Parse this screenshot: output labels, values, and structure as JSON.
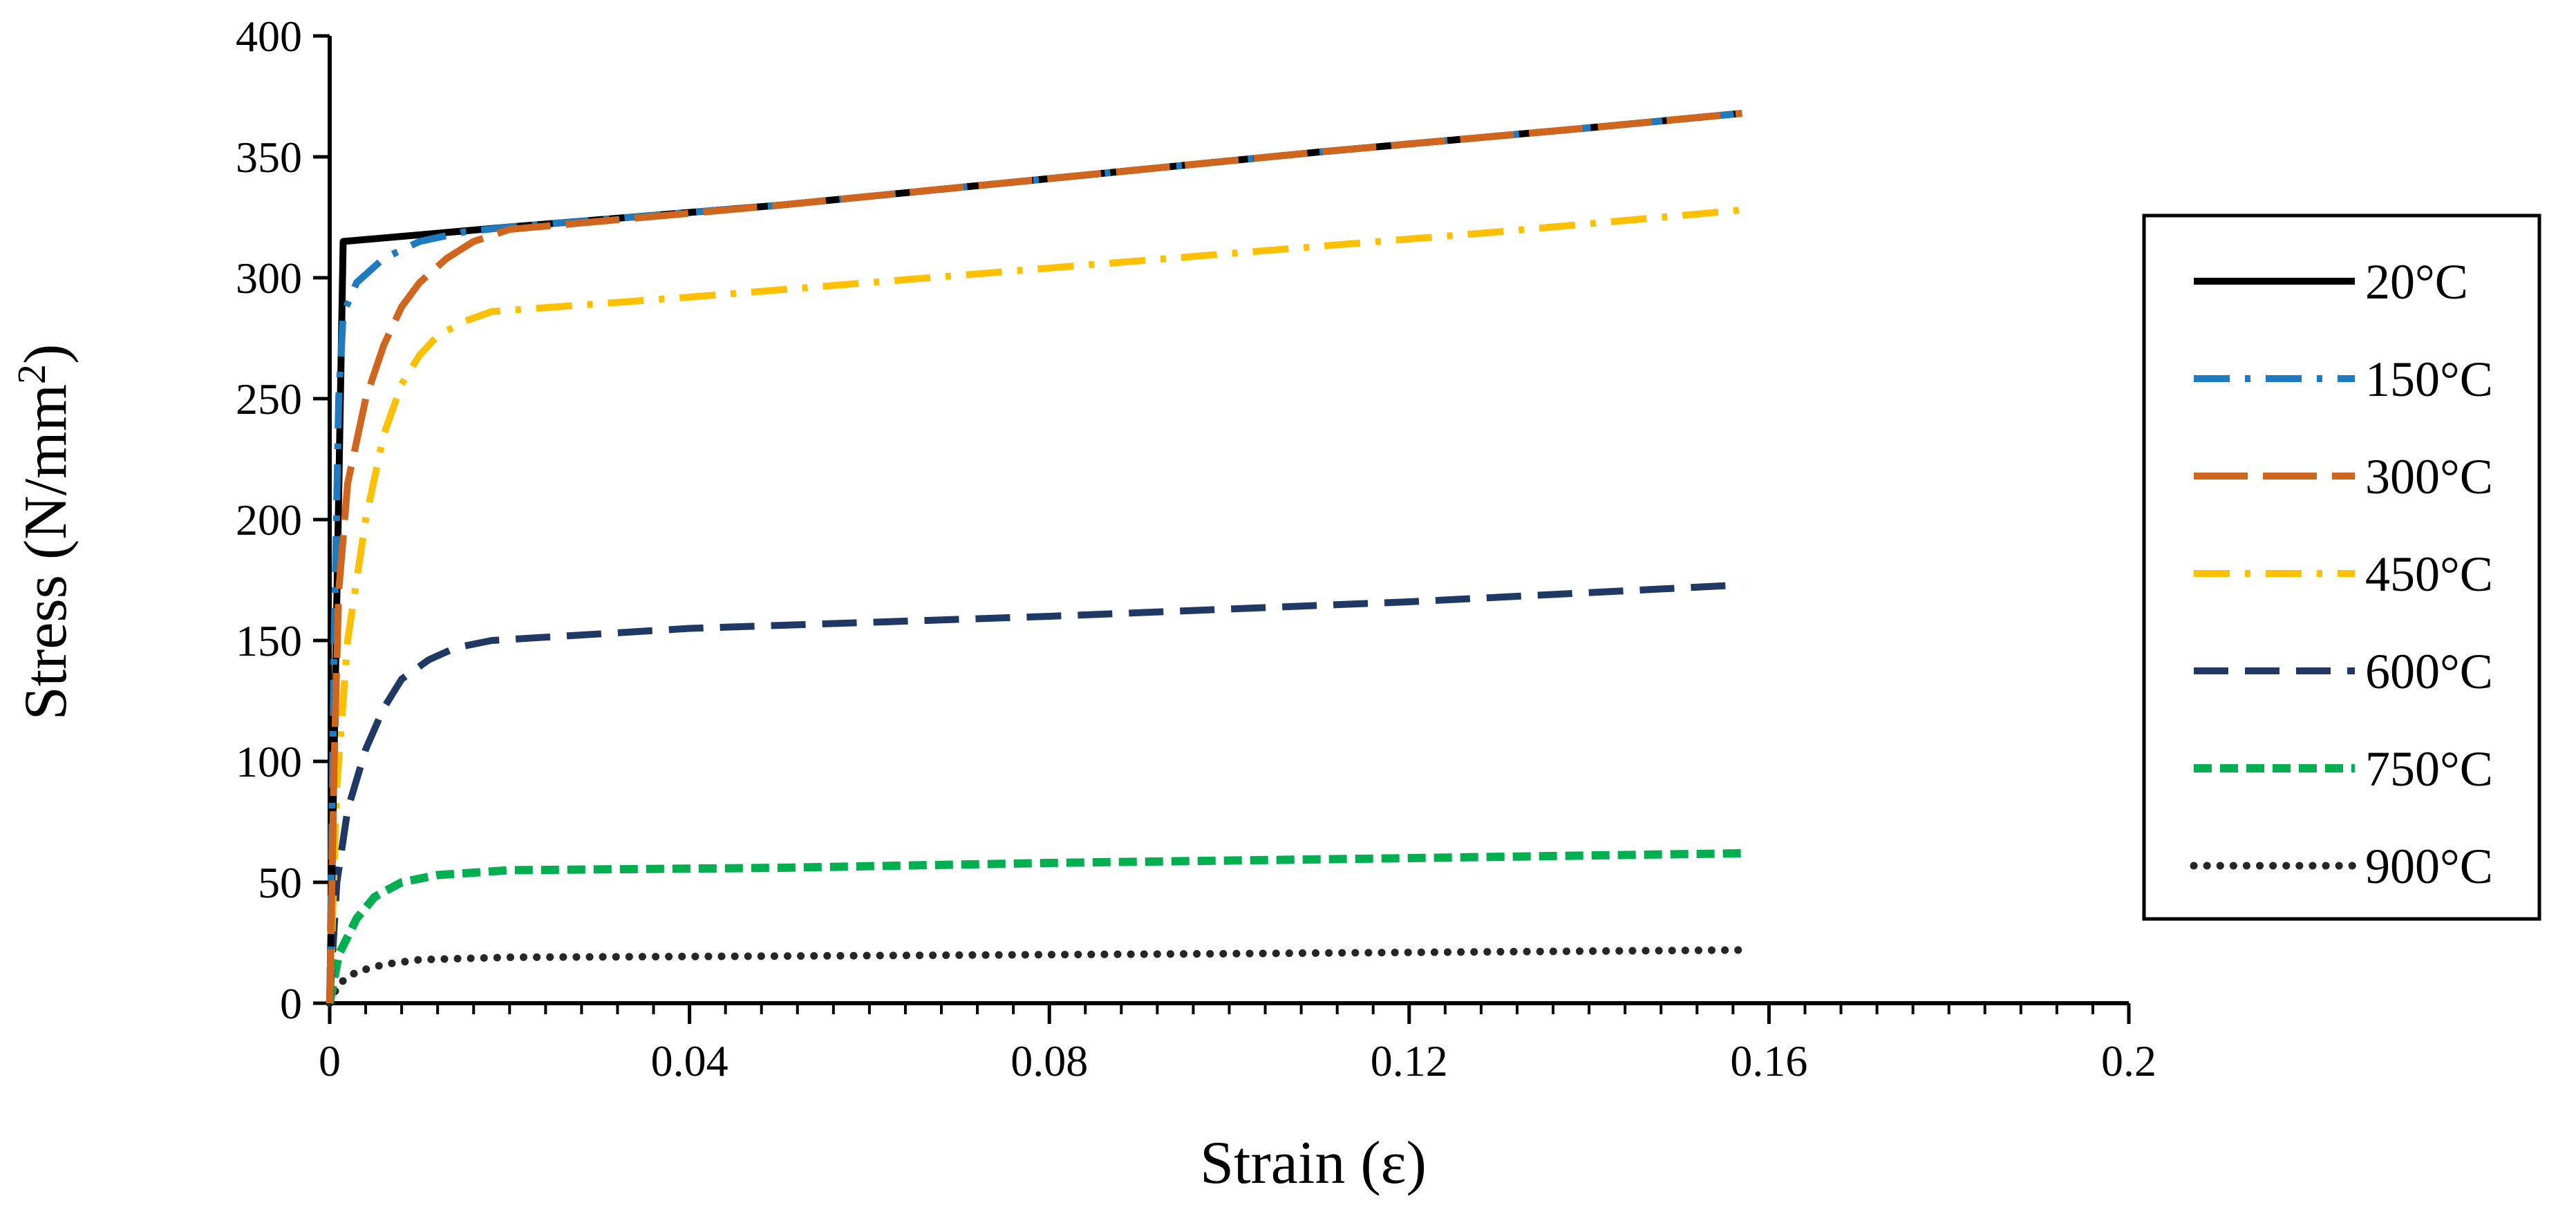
{
  "chart_data": {
    "type": "line",
    "xlabel": "Strain (ε)",
    "ylabel": "Stress (N/mm²)",
    "ylabel_main": "Stress (N/mm",
    "ylabel_sup": "2",
    "ylabel_close": ")",
    "xlim": [
      0,
      0.2
    ],
    "ylim": [
      0,
      400
    ],
    "x_ticks": [
      0,
      0.04,
      0.08,
      0.12,
      0.16,
      0.2
    ],
    "x_tick_labels": [
      "0",
      "0.04",
      "0.08",
      "0.12",
      "0.16",
      "0.2"
    ],
    "x_minor_step": 0.004,
    "y_ticks": [
      0,
      50,
      100,
      150,
      200,
      250,
      300,
      350,
      400
    ],
    "y_tick_labels": [
      "0",
      "50",
      "100",
      "150",
      "200",
      "250",
      "300",
      "350",
      "400"
    ],
    "grid": false,
    "legend_position": "right",
    "series": [
      {
        "name": "20°C",
        "color": "#000000",
        "dash": "solid",
        "points": [
          [
            0,
            0
          ],
          [
            0.0015,
            315
          ],
          [
            0.02,
            321
          ],
          [
            0.05,
            330
          ],
          [
            0.08,
            341
          ],
          [
            0.11,
            352
          ],
          [
            0.14,
            362
          ],
          [
            0.157,
            368
          ]
        ]
      },
      {
        "name": "150°C",
        "color": "#1f7bbf",
        "dash": "dashdot",
        "points": [
          [
            0,
            0
          ],
          [
            0.0005,
            150
          ],
          [
            0.001,
            250
          ],
          [
            0.0015,
            285
          ],
          [
            0.003,
            298
          ],
          [
            0.006,
            308
          ],
          [
            0.01,
            315
          ],
          [
            0.015,
            319
          ],
          [
            0.02,
            321
          ],
          [
            0.05,
            330
          ],
          [
            0.08,
            341
          ],
          [
            0.11,
            352
          ],
          [
            0.14,
            362
          ],
          [
            0.157,
            368
          ]
        ]
      },
      {
        "name": "300°C",
        "color": "#d0651e",
        "dash": "longdash",
        "points": [
          [
            0,
            0
          ],
          [
            0.0005,
            100
          ],
          [
            0.001,
            170
          ],
          [
            0.002,
            215
          ],
          [
            0.004,
            250
          ],
          [
            0.006,
            272
          ],
          [
            0.008,
            288
          ],
          [
            0.01,
            298
          ],
          [
            0.013,
            308
          ],
          [
            0.016,
            315
          ],
          [
            0.02,
            320
          ],
          [
            0.05,
            330
          ],
          [
            0.08,
            341
          ],
          [
            0.11,
            352
          ],
          [
            0.14,
            362
          ],
          [
            0.157,
            368
          ]
        ]
      },
      {
        "name": "450°C",
        "color": "#ffc000",
        "dash": "dashdot",
        "points": [
          [
            0,
            0
          ],
          [
            0.0008,
            90
          ],
          [
            0.002,
            150
          ],
          [
            0.004,
            200
          ],
          [
            0.006,
            235
          ],
          [
            0.008,
            256
          ],
          [
            0.01,
            268
          ],
          [
            0.012,
            276
          ],
          [
            0.015,
            282
          ],
          [
            0.018,
            286
          ],
          [
            0.04,
            292
          ],
          [
            0.07,
            301
          ],
          [
            0.1,
            310
          ],
          [
            0.13,
            319
          ],
          [
            0.157,
            328
          ]
        ]
      },
      {
        "name": "600°C",
        "color": "#1f3864",
        "dash": "dash",
        "points": [
          [
            0,
            0
          ],
          [
            0.0008,
            50
          ],
          [
            0.002,
            80
          ],
          [
            0.004,
            105
          ],
          [
            0.006,
            122
          ],
          [
            0.008,
            134
          ],
          [
            0.011,
            142
          ],
          [
            0.014,
            147
          ],
          [
            0.018,
            150
          ],
          [
            0.04,
            155
          ],
          [
            0.08,
            160
          ],
          [
            0.12,
            166
          ],
          [
            0.157,
            173
          ]
        ]
      },
      {
        "name": "750°C",
        "color": "#00b050",
        "dash": "shortdash",
        "points": [
          [
            0,
            0
          ],
          [
            0.001,
            20
          ],
          [
            0.003,
            35
          ],
          [
            0.005,
            44
          ],
          [
            0.008,
            50
          ],
          [
            0.012,
            53
          ],
          [
            0.02,
            55
          ],
          [
            0.05,
            56
          ],
          [
            0.08,
            58
          ],
          [
            0.12,
            60
          ],
          [
            0.157,
            62
          ]
        ]
      },
      {
        "name": "900°C",
        "color": "#262626",
        "dash": "dot",
        "points": [
          [
            0,
            0
          ],
          [
            0.001,
            8
          ],
          [
            0.003,
            13
          ],
          [
            0.006,
            16
          ],
          [
            0.01,
            18
          ],
          [
            0.02,
            19
          ],
          [
            0.05,
            19.5
          ],
          [
            0.1,
            20.5
          ],
          [
            0.157,
            22
          ]
        ]
      }
    ]
  }
}
